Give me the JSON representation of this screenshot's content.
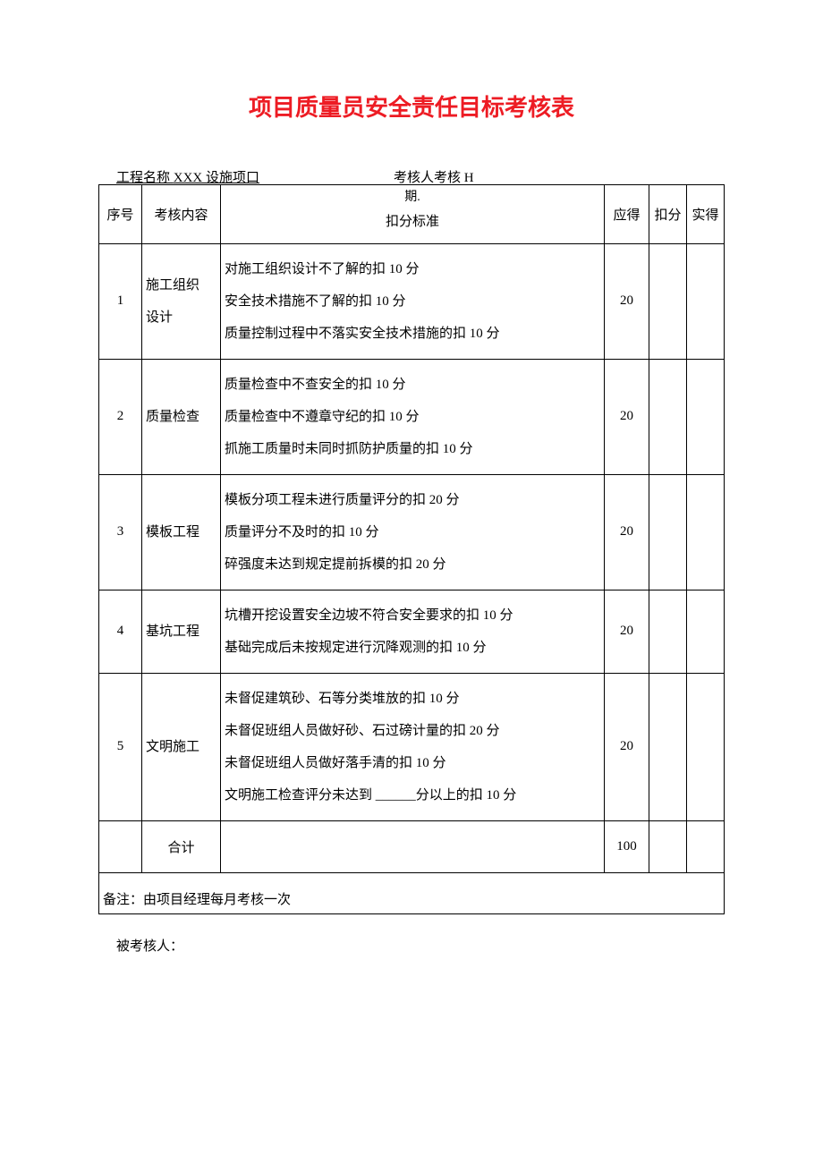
{
  "title": "项目质量员安全责任目标考核表",
  "header": {
    "project_label": "工程名称",
    "project_name": "XXX 设施项口",
    "assess_label": "考核人考核 H",
    "period_suffix": "期."
  },
  "columns": {
    "seq": "序号",
    "content": "考核内容",
    "standard": "扣分标准",
    "score": "应得",
    "deduct": "扣分",
    "actual": "实得"
  },
  "rows": [
    {
      "seq": "1",
      "content": "施工组织\n设计",
      "standard": "对施工组织设计不了解的扣 10 分\n安全技术措施不了解的扣 10 分\n质量控制过程中不落实安全技术措施的扣 10 分",
      "score": "20"
    },
    {
      "seq": "2",
      "content": "质量检查",
      "standard": "质量检查中不查安全的扣 10 分\n质量检查中不遵章守纪的扣 10 分\n抓施工质量时未同时抓防护质量的扣 10 分",
      "score": "20"
    },
    {
      "seq": "3",
      "content": "模板工程",
      "standard": "模板分项工程未进行质量评分的扣 20 分\n质量评分不及时的扣 10 分\n碎强度未达到规定提前拆模的扣 20 分",
      "score": "20"
    },
    {
      "seq": "4",
      "content": "基坑工程",
      "standard": "坑槽开挖设置安全边坡不符合安全要求的扣 10 分\n基础完成后未按规定进行沉降观测的扣 10 分",
      "score": "20"
    },
    {
      "seq": "5",
      "content": "文明施工",
      "standard": "未督促建筑砂、石等分类堆放的扣 10 分\n未督促班组人员做好砂、石过磅计量的扣 20 分\n未督促班组人员做好落手清的扣 10 分\n文明施工检查评分未达到 ______分以上的扣 10 分",
      "score": "20"
    }
  ],
  "total": {
    "label": "合计",
    "score": "100"
  },
  "note": "备注：由项目经理每月考核一次",
  "footer": "被考核人："
}
